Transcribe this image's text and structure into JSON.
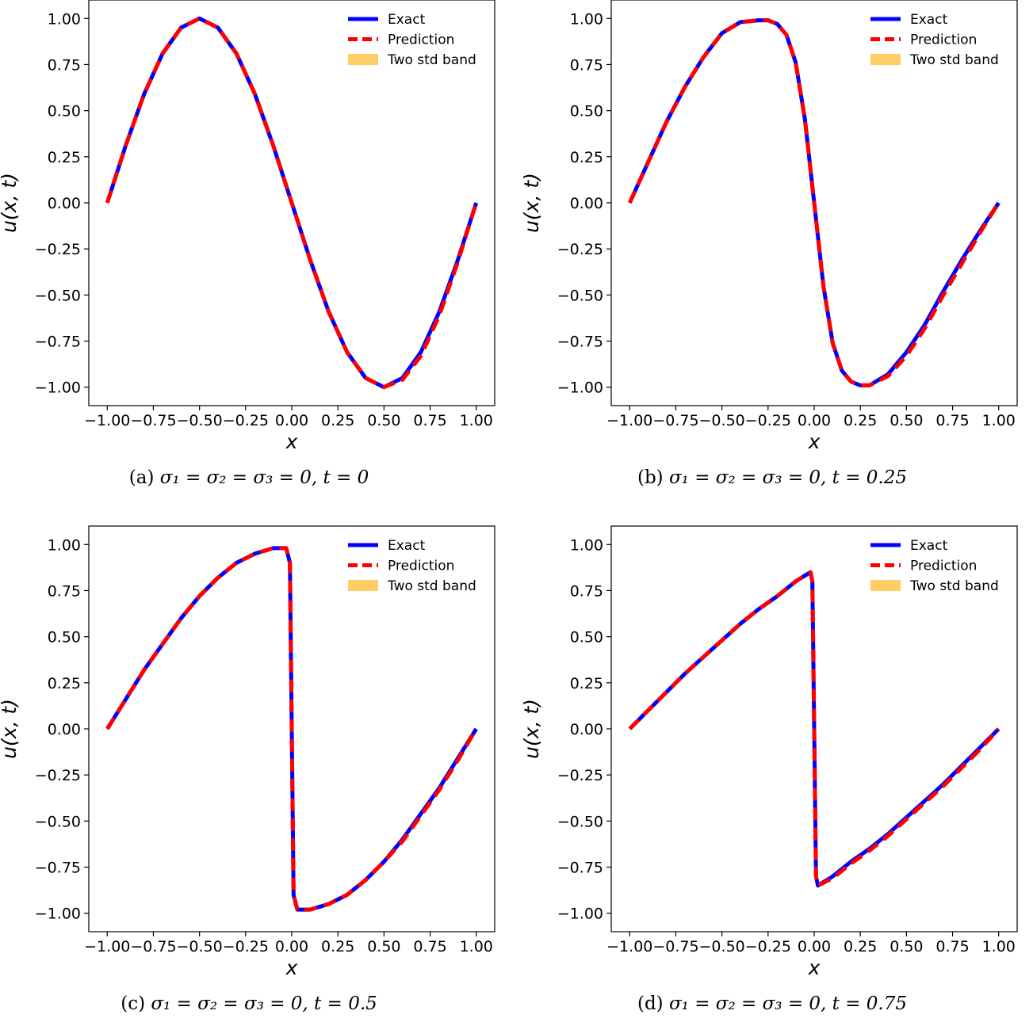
{
  "legend_labels": [
    "Exact",
    "Prediction",
    "Two std band"
  ],
  "colors": {
    "exact": "#0000ff",
    "prediction": "#ff0000",
    "band": "#ffcc66"
  },
  "chart_data": [
    {
      "type": "line",
      "caption": {
        "label": "(a)",
        "math": "σ₁ = σ₂ = σ₃ = 0,   t = 0"
      },
      "xlabel": "x",
      "ylabel": "u(x, t)",
      "xlim": [
        -1.1,
        1.1
      ],
      "ylim": [
        -1.1,
        1.1
      ],
      "xticks": [
        "−1.00",
        "−0.75",
        "−0.50",
        "−0.25",
        "0.00",
        "0.25",
        "0.50",
        "0.75",
        "1.00"
      ],
      "yticks": [
        "1.00",
        "0.75",
        "0.50",
        "0.25",
        "0.00",
        "−0.25",
        "−0.50",
        "−0.75",
        "−1.00"
      ],
      "legend_position": "upper right",
      "series": [
        {
          "name": "Exact",
          "x": [
            -1.0,
            -0.9,
            -0.8,
            -0.7,
            -0.6,
            -0.5,
            -0.4,
            -0.3,
            -0.2,
            -0.1,
            0.0,
            0.1,
            0.2,
            0.3,
            0.4,
            0.5,
            0.6,
            0.7,
            0.8,
            0.9,
            1.0
          ],
          "y": [
            0.0,
            0.31,
            0.59,
            0.81,
            0.95,
            1.0,
            0.95,
            0.81,
            0.59,
            0.31,
            0.0,
            -0.31,
            -0.59,
            -0.81,
            -0.95,
            -1.0,
            -0.95,
            -0.81,
            -0.59,
            -0.31,
            0.0
          ]
        },
        {
          "name": "Prediction",
          "x": [
            -1.0,
            -0.9,
            -0.8,
            -0.7,
            -0.6,
            -0.5,
            -0.4,
            -0.3,
            -0.2,
            -0.1,
            0.0,
            0.1,
            0.2,
            0.3,
            0.4,
            0.5,
            0.6,
            0.7,
            0.8,
            0.9,
            1.0
          ],
          "y": [
            0.0,
            0.31,
            0.59,
            0.81,
            0.95,
            1.0,
            0.95,
            0.81,
            0.59,
            0.31,
            0.0,
            -0.31,
            -0.59,
            -0.81,
            -0.95,
            -1.0,
            -0.96,
            -0.83,
            -0.61,
            -0.32,
            0.0
          ]
        }
      ]
    },
    {
      "type": "line",
      "caption": {
        "label": "(b)",
        "math": "σ₁ = σ₂ = σ₃ = 0,   t = 0.25"
      },
      "xlabel": "x",
      "ylabel": "u(x, t)",
      "xlim": [
        -1.1,
        1.1
      ],
      "ylim": [
        -1.1,
        1.1
      ],
      "xticks": [
        "−1.00",
        "−0.75",
        "−0.50",
        "−0.25",
        "0.00",
        "0.25",
        "0.50",
        "0.75",
        "1.00"
      ],
      "yticks": [
        "1.00",
        "0.75",
        "0.50",
        "0.25",
        "0.00",
        "−0.25",
        "−0.50",
        "−0.75",
        "−1.00"
      ],
      "legend_position": "upper right",
      "series": [
        {
          "name": "Exact",
          "x": [
            -1.0,
            -0.9,
            -0.8,
            -0.7,
            -0.6,
            -0.5,
            -0.4,
            -0.3,
            -0.25,
            -0.2,
            -0.15,
            -0.1,
            -0.05,
            0.0,
            0.05,
            0.1,
            0.15,
            0.2,
            0.25,
            0.3,
            0.4,
            0.5,
            0.6,
            0.7,
            0.8,
            0.9,
            1.0
          ],
          "y": [
            0.0,
            0.22,
            0.44,
            0.63,
            0.79,
            0.92,
            0.98,
            0.99,
            0.99,
            0.97,
            0.91,
            0.76,
            0.45,
            0.0,
            -0.45,
            -0.76,
            -0.91,
            -0.97,
            -0.99,
            -0.99,
            -0.93,
            -0.81,
            -0.66,
            -0.48,
            -0.31,
            -0.15,
            0.0
          ]
        },
        {
          "name": "Prediction",
          "x": [
            -1.0,
            -0.9,
            -0.8,
            -0.7,
            -0.6,
            -0.5,
            -0.4,
            -0.3,
            -0.25,
            -0.2,
            -0.15,
            -0.1,
            -0.05,
            0.0,
            0.05,
            0.1,
            0.15,
            0.2,
            0.25,
            0.3,
            0.4,
            0.5,
            0.6,
            0.7,
            0.8,
            0.9,
            1.0
          ],
          "y": [
            0.0,
            0.22,
            0.44,
            0.63,
            0.79,
            0.92,
            0.98,
            0.99,
            0.99,
            0.97,
            0.91,
            0.76,
            0.45,
            0.0,
            -0.45,
            -0.76,
            -0.91,
            -0.97,
            -0.99,
            -0.99,
            -0.94,
            -0.83,
            -0.68,
            -0.5,
            -0.33,
            -0.16,
            0.0
          ]
        }
      ]
    },
    {
      "type": "line",
      "caption": {
        "label": "(c)",
        "math": "σ₁ = σ₂ = σ₃ = 0,   t = 0.5"
      },
      "xlabel": "x",
      "ylabel": "u(x, t)",
      "xlim": [
        -1.1,
        1.1
      ],
      "ylim": [
        -1.1,
        1.1
      ],
      "xticks": [
        "−1.00",
        "−0.75",
        "−0.50",
        "−0.25",
        "0.00",
        "0.25",
        "0.50",
        "0.75",
        "1.00"
      ],
      "yticks": [
        "1.00",
        "0.75",
        "0.50",
        "0.25",
        "0.00",
        "−0.25",
        "−0.50",
        "−0.75",
        "−1.00"
      ],
      "legend_position": "upper right",
      "series": [
        {
          "name": "Exact",
          "x": [
            -1.0,
            -0.9,
            -0.8,
            -0.7,
            -0.6,
            -0.5,
            -0.4,
            -0.3,
            -0.2,
            -0.1,
            -0.03,
            -0.01,
            0.0,
            0.01,
            0.03,
            0.1,
            0.2,
            0.3,
            0.4,
            0.5,
            0.6,
            0.7,
            0.8,
            0.9,
            1.0
          ],
          "y": [
            0.0,
            0.16,
            0.32,
            0.46,
            0.6,
            0.72,
            0.82,
            0.9,
            0.95,
            0.98,
            0.98,
            0.9,
            0.0,
            -0.9,
            -0.98,
            -0.98,
            -0.95,
            -0.9,
            -0.82,
            -0.72,
            -0.6,
            -0.46,
            -0.32,
            -0.16,
            0.0
          ]
        },
        {
          "name": "Prediction",
          "x": [
            -1.0,
            -0.9,
            -0.8,
            -0.7,
            -0.6,
            -0.5,
            -0.4,
            -0.3,
            -0.2,
            -0.1,
            -0.03,
            -0.01,
            0.0,
            0.01,
            0.03,
            0.1,
            0.2,
            0.3,
            0.4,
            0.5,
            0.6,
            0.7,
            0.8,
            0.9,
            1.0
          ],
          "y": [
            0.0,
            0.16,
            0.32,
            0.46,
            0.6,
            0.72,
            0.82,
            0.9,
            0.95,
            0.98,
            0.98,
            0.9,
            0.0,
            -0.9,
            -0.98,
            -0.98,
            -0.95,
            -0.9,
            -0.82,
            -0.72,
            -0.61,
            -0.47,
            -0.33,
            -0.17,
            0.0
          ]
        }
      ]
    },
    {
      "type": "line",
      "caption": {
        "label": "(d)",
        "math": "σ₁ = σ₂ = σ₃ = 0,   t = 0.75"
      },
      "xlabel": "x",
      "ylabel": "u(x, t)",
      "xlim": [
        -1.1,
        1.1
      ],
      "ylim": [
        -1.1,
        1.1
      ],
      "xticks": [
        "−1.00",
        "−0.75",
        "−0.50",
        "−0.25",
        "0.00",
        "0.25",
        "0.50",
        "0.75",
        "1.00"
      ],
      "yticks": [
        "1.00",
        "0.75",
        "0.50",
        "0.25",
        "0.00",
        "−0.25",
        "−0.50",
        "−0.75",
        "−1.00"
      ],
      "legend_position": "upper right",
      "series": [
        {
          "name": "Exact",
          "x": [
            -1.0,
            -0.9,
            -0.8,
            -0.7,
            -0.6,
            -0.5,
            -0.4,
            -0.3,
            -0.2,
            -0.1,
            -0.02,
            -0.01,
            0.0,
            0.01,
            0.02,
            0.1,
            0.2,
            0.3,
            0.4,
            0.5,
            0.6,
            0.7,
            0.8,
            0.9,
            1.0
          ],
          "y": [
            0.0,
            0.1,
            0.2,
            0.3,
            0.39,
            0.48,
            0.57,
            0.65,
            0.72,
            0.8,
            0.85,
            0.8,
            0.0,
            -0.8,
            -0.85,
            -0.8,
            -0.72,
            -0.65,
            -0.57,
            -0.48,
            -0.39,
            -0.3,
            -0.2,
            -0.1,
            0.0
          ]
        },
        {
          "name": "Prediction",
          "x": [
            -1.0,
            -0.9,
            -0.8,
            -0.7,
            -0.6,
            -0.5,
            -0.4,
            -0.3,
            -0.2,
            -0.1,
            -0.02,
            -0.01,
            0.0,
            0.01,
            0.02,
            0.1,
            0.2,
            0.3,
            0.4,
            0.5,
            0.6,
            0.7,
            0.8,
            0.9,
            1.0
          ],
          "y": [
            0.0,
            0.1,
            0.2,
            0.3,
            0.39,
            0.48,
            0.57,
            0.65,
            0.72,
            0.8,
            0.85,
            0.8,
            0.0,
            -0.8,
            -0.85,
            -0.81,
            -0.73,
            -0.66,
            -0.58,
            -0.49,
            -0.4,
            -0.31,
            -0.21,
            -0.11,
            0.0
          ]
        }
      ]
    }
  ]
}
